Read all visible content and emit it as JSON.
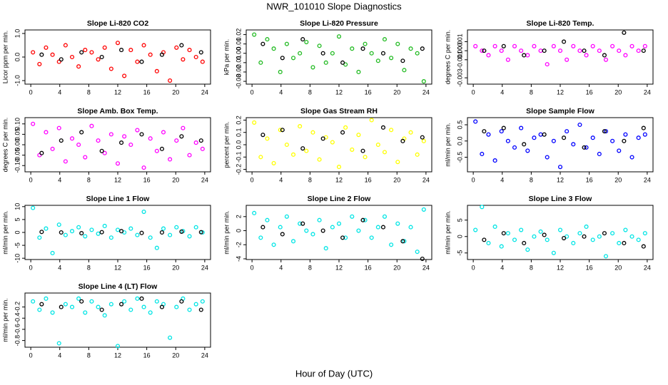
{
  "title": "NWR_101010  Slope Diagnostics",
  "xlabel": "Hour of Day (UTC)",
  "chart_data": [
    {
      "type": "scatter",
      "title": "Slope Li-820 CO2",
      "ylabel": "Licor ppm per min.",
      "xlim": [
        -0.8,
        24.8
      ],
      "xticks": [
        0,
        4,
        8,
        12,
        16,
        20,
        24
      ],
      "ylim": [
        -1.15,
        1.15
      ],
      "yticks": [
        {
          "value": -1,
          "label": "-1.0"
        },
        {
          "value": 0,
          "label": "0.0"
        },
        {
          "value": 1,
          "label": "1.0"
        }
      ],
      "series": [
        {
          "color": "#ff0000",
          "x": [
            0.3,
            1.2,
            2.1,
            3.0,
            3.9,
            4.8,
            5.7,
            6.6,
            7.5,
            8.4,
            9.3,
            10.2,
            11.1,
            12.0,
            12.9,
            13.8,
            14.7,
            15.6,
            16.5,
            17.4,
            18.3,
            19.2,
            20.1,
            21.0,
            21.9,
            22.8,
            23.7
          ],
          "values": [
            0.2,
            -0.3,
            0.4,
            0.1,
            -0.2,
            0.5,
            0.0,
            -0.4,
            0.3,
            0.2,
            -0.1,
            0.4,
            -0.5,
            0.6,
            -0.8,
            0.3,
            -0.2,
            0.5,
            0.1,
            -0.6,
            0.2,
            -1.0,
            0.4,
            -0.1,
            0.3,
            0.0,
            -0.2
          ]
        },
        {
          "color": "#000000",
          "x": [
            1.5,
            4.2,
            7.0,
            9.8,
            12.5,
            15.3,
            18.1,
            20.8,
            23.5
          ],
          "values": [
            0.1,
            -0.1,
            0.2,
            0.0,
            0.3,
            -0.2,
            0.1,
            0.5,
            0.2
          ]
        }
      ]
    },
    {
      "type": "scatter",
      "title": "Slope Li-820 Pressure",
      "ylabel": "kPa per min.",
      "xlim": [
        -0.8,
        24.8
      ],
      "xticks": [
        0,
        4,
        8,
        12,
        16,
        20,
        24
      ],
      "ylim": [
        -0.033,
        0.025
      ],
      "yticks": [
        -0.03,
        -0.02,
        -0.01,
        {
          "value": 0,
          "label": "0.00"
        },
        0.01,
        0.02
      ],
      "series": [
        {
          "color": "#22bb22",
          "x": [
            0.3,
            1.2,
            2.1,
            3.0,
            3.9,
            4.8,
            5.7,
            6.6,
            7.5,
            8.4,
            9.3,
            10.2,
            11.1,
            12.0,
            12.9,
            13.8,
            14.7,
            15.6,
            16.5,
            17.4,
            18.3,
            19.2,
            20.1,
            21.0,
            21.9,
            22.8,
            23.7
          ],
          "values": [
            0.02,
            -0.01,
            0.015,
            0.005,
            -0.02,
            0.01,
            -0.005,
            0.0,
            0.012,
            -0.015,
            0.008,
            -0.01,
            0.0,
            0.018,
            -0.012,
            0.005,
            -0.02,
            0.01,
            0.0,
            -0.008,
            0.015,
            -0.005,
            0.01,
            -0.018,
            0.005,
            0.0,
            -0.03
          ]
        },
        {
          "color": "#000000",
          "x": [
            1.5,
            4.2,
            7.0,
            9.8,
            12.5,
            15.3,
            18.1,
            20.8,
            23.5
          ],
          "values": [
            0.01,
            -0.005,
            0.015,
            0.0,
            -0.01,
            0.005,
            0.0,
            -0.008,
            0.005
          ]
        }
      ]
    },
    {
      "type": "scatter",
      "title": "Slope Li-820 Temp.",
      "ylabel": "degrees C per min.",
      "xlim": [
        -0.8,
        24.8
      ],
      "xticks": [
        0,
        4,
        8,
        12,
        16,
        20,
        24
      ],
      "ylim": [
        -0.0037,
        0.0023
      ],
      "yticks": [
        -0.003,
        -0.001,
        {
          "value": 0,
          "label": "0.000"
        },
        0.001
      ],
      "series": [
        {
          "color": "#ff00ff",
          "x": [
            0.3,
            1.2,
            2.1,
            3.0,
            3.9,
            4.8,
            5.7,
            6.6,
            7.5,
            8.4,
            9.3,
            10.2,
            11.1,
            12.0,
            12.9,
            13.8,
            14.7,
            15.6,
            16.5,
            17.4,
            18.3,
            19.2,
            20.1,
            21.0,
            21.9,
            22.8,
            23.7
          ],
          "values": [
            0.0005,
            0,
            -0.0005,
            0.0005,
            0,
            -0.001,
            0.0005,
            0,
            -0.0005,
            0.0005,
            0,
            -0.0015,
            0.0005,
            0,
            -0.001,
            0.0005,
            0,
            -0.0005,
            0.0005,
            0,
            -0.001,
            0.0005,
            0,
            -0.0005,
            0.0005,
            0,
            0.0005
          ]
        },
        {
          "color": "#000000",
          "x": [
            1.5,
            4.2,
            7.0,
            9.8,
            12.5,
            15.3,
            18.1,
            20.8,
            23.5
          ],
          "values": [
            0,
            0.0005,
            -0.0005,
            0,
            0.001,
            0,
            -0.0005,
            0.002,
            0
          ]
        }
      ]
    },
    {
      "type": "scatter",
      "title": "Slope Amb. Box Temp.",
      "ylabel": "degrees C per min.",
      "xlim": [
        -0.8,
        24.8
      ],
      "xticks": [
        0,
        4,
        8,
        12,
        16,
        20,
        24
      ],
      "ylim": [
        -0.13,
        0.13
      ],
      "yticks": [
        {
          "value": -0.1,
          "label": "-0.10"
        },
        -0.05,
        {
          "value": 0,
          "label": "0.00"
        },
        0.05,
        {
          "value": 0.1,
          "label": "0.10"
        }
      ],
      "series": [
        {
          "color": "#ff00ff",
          "x": [
            0.3,
            1.2,
            2.1,
            3.0,
            3.9,
            4.8,
            5.7,
            6.6,
            7.5,
            8.4,
            9.3,
            10.2,
            11.1,
            12.0,
            12.9,
            13.8,
            14.7,
            15.6,
            16.5,
            17.4,
            18.3,
            19.2,
            20.1,
            21.0,
            21.9,
            22.8,
            23.7
          ],
          "values": [
            0.1,
            -0.05,
            0.06,
            -0.02,
            0.08,
            -0.08,
            0.03,
            0.0,
            -0.06,
            0.09,
            0.02,
            -0.04,
            0.05,
            -0.09,
            0.04,
            0.0,
            0.07,
            -0.11,
            0.03,
            -0.03,
            0.06,
            -0.07,
            0.02,
            0.08,
            -0.05,
            0.01,
            -0.02
          ]
        },
        {
          "color": "#000000",
          "x": [
            1.5,
            4.2,
            7.0,
            9.8,
            12.5,
            15.3,
            18.1,
            20.8,
            23.5
          ],
          "values": [
            -0.04,
            0.02,
            0.06,
            -0.03,
            0.01,
            0.05,
            -0.02,
            0.04,
            0.02
          ]
        }
      ]
    },
    {
      "type": "scatter",
      "title": "Slope Gas Stream RH",
      "ylabel": "percent per min.",
      "xlim": [
        -0.8,
        24.8
      ],
      "xticks": [
        0,
        4,
        8,
        12,
        16,
        20,
        24
      ],
      "ylim": [
        -0.22,
        0.22
      ],
      "yticks": [
        -0.2,
        -0.1,
        {
          "value": 0,
          "label": "0.0"
        },
        0.1,
        0.2
      ],
      "series": [
        {
          "color": "#ffff00",
          "x": [
            0.3,
            1.2,
            2.1,
            3.0,
            3.9,
            4.8,
            5.7,
            6.6,
            7.5,
            8.4,
            9.3,
            10.2,
            11.1,
            12.0,
            12.9,
            13.8,
            14.7,
            15.6,
            16.5,
            17.4,
            18.3,
            19.2,
            20.1,
            21.0,
            21.9,
            22.8,
            23.7
          ],
          "values": [
            0.18,
            -0.1,
            0.05,
            -0.15,
            0.12,
            0.0,
            -0.08,
            0.15,
            -0.05,
            0.1,
            -0.12,
            0.06,
            0.02,
            -0.18,
            0.14,
            -0.04,
            0.08,
            -0.1,
            0.2,
            0.0,
            -0.06,
            0.12,
            -0.14,
            0.05,
            0.1,
            -0.08,
            0.03
          ]
        },
        {
          "color": "#000000",
          "x": [
            1.5,
            4.2,
            7.0,
            9.8,
            12.5,
            15.3,
            18.1,
            20.8,
            23.5
          ],
          "values": [
            0.08,
            0.12,
            -0.03,
            0.05,
            0.1,
            -0.05,
            0.14,
            0.03,
            0.06
          ]
        }
      ]
    },
    {
      "type": "scatter",
      "title": "Slope Sample Flow",
      "ylabel": "ml/min per min.",
      "xlim": [
        -0.8,
        24.8
      ],
      "xticks": [
        0,
        4,
        8,
        12,
        16,
        20,
        24
      ],
      "ylim": [
        -0.95,
        0.72
      ],
      "yticks": [
        -0.5,
        {
          "value": 0,
          "label": "0.0"
        },
        0.5
      ],
      "series": [
        {
          "color": "#0000ff",
          "x": [
            0.3,
            1.2,
            2.1,
            3.0,
            3.9,
            4.8,
            5.7,
            6.6,
            7.5,
            8.4,
            9.3,
            10.2,
            11.1,
            12.0,
            12.9,
            13.8,
            14.7,
            15.6,
            16.5,
            17.4,
            18.3,
            19.2,
            20.1,
            21.0,
            21.9,
            22.8,
            23.7
          ],
          "values": [
            0.6,
            -0.4,
            0.2,
            -0.6,
            0.3,
            0.0,
            -0.2,
            0.4,
            -0.3,
            0.1,
            0.2,
            -0.5,
            0.0,
            -0.8,
            0.3,
            -0.1,
            0.5,
            -0.2,
            0.1,
            -0.4,
            0.3,
            0.0,
            -0.3,
            0.2,
            -0.5,
            0.1,
            0.2
          ]
        },
        {
          "color": "#000000",
          "x": [
            1.5,
            4.2,
            7.0,
            9.8,
            12.5,
            15.3,
            18.1,
            20.8,
            23.5
          ],
          "values": [
            0.3,
            0.4,
            -0.1,
            0.2,
            0.1,
            -0.2,
            0.3,
            0.0,
            0.4
          ]
        }
      ]
    },
    {
      "type": "scatter",
      "title": "Slope Line 1 Flow",
      "ylabel": "ml/min per min.",
      "xlim": [
        -0.8,
        24.8
      ],
      "xticks": [
        0,
        4,
        8,
        12,
        16,
        20,
        24
      ],
      "ylim": [
        -10.5,
        10.5
      ],
      "yticks": [
        -10,
        -5,
        0,
        5,
        10
      ],
      "series": [
        {
          "color": "#00e5e5",
          "x": [
            0.3,
            1.2,
            2.1,
            3.0,
            3.9,
            4.8,
            5.7,
            6.6,
            7.5,
            8.4,
            9.3,
            10.2,
            11.1,
            12.0,
            12.9,
            13.8,
            14.7,
            15.6,
            16.5,
            17.4,
            18.3,
            19.2,
            20.1,
            21.0,
            21.9,
            22.8,
            23.7
          ],
          "values": [
            9.5,
            -2,
            1.5,
            -8,
            3,
            -1,
            0.5,
            2,
            -1.5,
            1,
            -0.5,
            2.5,
            -2,
            1,
            0,
            1.5,
            -1,
            8,
            -2,
            -6,
            1.5,
            -1,
            2,
            0.5,
            -1.5,
            2,
            0
          ]
        },
        {
          "color": "#000000",
          "x": [
            1.5,
            4.2,
            7.0,
            9.8,
            12.5,
            15.3,
            18.1,
            20.8,
            23.5
          ],
          "values": [
            0.2,
            0,
            -0.3,
            0.1,
            0.5,
            -0.2,
            0,
            0.3,
            0.1
          ]
        }
      ]
    },
    {
      "type": "scatter",
      "title": "Slope Line 2 Flow",
      "ylabel": "ml/min per min.",
      "xlim": [
        -0.8,
        24.8
      ],
      "xticks": [
        0,
        4,
        8,
        12,
        16,
        20,
        24
      ],
      "ylim": [
        -4.1,
        3.6
      ],
      "yticks": [
        -4,
        -2,
        0,
        2
      ],
      "series": [
        {
          "color": "#00e5e5",
          "x": [
            0.3,
            1.2,
            2.1,
            3.0,
            3.9,
            4.8,
            5.7,
            6.6,
            7.5,
            8.4,
            9.3,
            10.2,
            11.1,
            12.0,
            12.9,
            13.8,
            14.7,
            15.6,
            16.5,
            17.4,
            18.3,
            19.2,
            20.1,
            21.0,
            21.9,
            22.8,
            23.7
          ],
          "values": [
            2.5,
            -1,
            1.5,
            -2,
            0.5,
            2,
            -1.5,
            1,
            0,
            -0.5,
            1.5,
            -2.5,
            0.5,
            1,
            -1,
            2,
            0,
            1.5,
            -1,
            0.5,
            2,
            -2,
            1,
            -1.5,
            0.5,
            -3,
            3
          ]
        },
        {
          "color": "#000000",
          "x": [
            1.5,
            4.2,
            7.0,
            9.8,
            12.5,
            15.3,
            18.1,
            20.8,
            23.5
          ],
          "values": [
            0.5,
            -0.5,
            1,
            0,
            -1,
            1.5,
            0.5,
            -1.5,
            -4
          ]
        }
      ]
    },
    {
      "type": "scatter",
      "title": "Slope Line 3 Flow",
      "ylabel": "ml/min per min.",
      "xlim": [
        -0.8,
        24.8
      ],
      "xticks": [
        0,
        4,
        8,
        12,
        16,
        20,
        24
      ],
      "ylim": [
        -7,
        9.5
      ],
      "yticks": [
        -5,
        0,
        5
      ],
      "series": [
        {
          "color": "#00e5e5",
          "x": [
            0.3,
            1.2,
            2.1,
            3.0,
            3.9,
            4.8,
            5.7,
            6.6,
            7.5,
            8.4,
            9.3,
            10.2,
            11.1,
            12.0,
            12.9,
            13.8,
            14.7,
            15.6,
            16.5,
            17.4,
            18.3,
            19.2,
            20.1,
            21.0,
            21.9,
            22.8,
            23.7
          ],
          "values": [
            2,
            9,
            -2,
            3,
            -3,
            1,
            -1,
            2,
            -4,
            0,
            1.5,
            -1,
            -5,
            2,
            0,
            -2,
            1,
            3,
            -1,
            0,
            -6,
            1,
            -2,
            2,
            0,
            -1,
            1
          ]
        },
        {
          "color": "#000000",
          "x": [
            1.5,
            4.2,
            7.0,
            9.8,
            12.5,
            15.3,
            18.1,
            20.8,
            23.5
          ],
          "values": [
            -1,
            1,
            -2,
            0.5,
            -0.5,
            0,
            1,
            -2,
            -3
          ]
        }
      ]
    },
    {
      "type": "scatter",
      "title": "Slope Line 4 (LT) Flow",
      "ylabel": "ml/min per min.",
      "xlim": [
        -0.8,
        24.8
      ],
      "xticks": [
        0,
        4,
        8,
        12,
        16,
        20,
        24
      ],
      "ylim": [
        -0.92,
        0.05
      ],
      "yticks": [
        -0.8,
        -0.6,
        -0.4,
        -0.2
      ],
      "series": [
        {
          "color": "#00e5e5",
          "x": [
            0.3,
            1.2,
            2.1,
            3.0,
            3.9,
            4.8,
            5.7,
            6.6,
            7.5,
            8.4,
            9.3,
            10.2,
            11.1,
            12.0,
            12.9,
            13.8,
            14.7,
            15.6,
            16.5,
            17.4,
            18.3,
            19.2,
            20.1,
            21.0,
            21.9,
            22.8,
            23.7
          ],
          "values": [
            -0.1,
            -0.25,
            -0.05,
            -0.3,
            -0.85,
            -0.15,
            -0.2,
            -0.05,
            -0.3,
            -0.1,
            -0.2,
            -0.35,
            -0.15,
            -0.9,
            -0.1,
            -0.25,
            -0.05,
            -0.2,
            -0.3,
            -0.1,
            -0.15,
            -0.75,
            -0.2,
            -0.05,
            -0.25,
            -0.15,
            -0.1
          ]
        },
        {
          "color": "#000000",
          "x": [
            1.5,
            4.2,
            7.0,
            9.8,
            12.5,
            15.3,
            18.1,
            20.8,
            23.5
          ],
          "values": [
            -0.15,
            -0.2,
            -0.1,
            -0.25,
            -0.15,
            -0.05,
            -0.2,
            -0.1,
            -0.25
          ]
        }
      ]
    }
  ]
}
